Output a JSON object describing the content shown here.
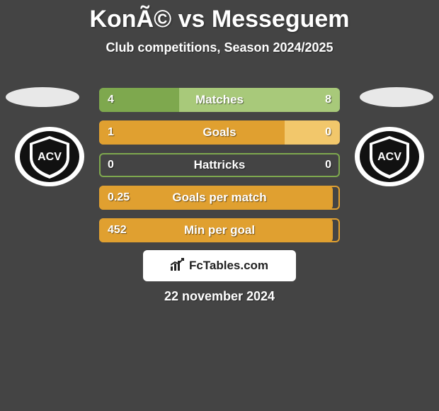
{
  "header": {
    "title": "KonÃ© vs Messeguem",
    "subtitle": "Club competitions, Season 2024/2025"
  },
  "colors": {
    "background": "#444444",
    "bar_border_matches": "#7ea84e",
    "bar_fill_matches_left": "#7ea84e",
    "bar_fill_matches_right": "#a8c97a",
    "bar_border_goals": "#e0a030",
    "bar_fill_goals_left": "#e0a030",
    "bar_fill_goals_right": "#f2c76b",
    "text": "#ffffff",
    "badge_bg": "#e8e8e8",
    "attribution_bg": "#ffffff",
    "attribution_text": "#222222"
  },
  "bars": [
    {
      "label": "Matches",
      "left": "4",
      "right": "8",
      "left_pct": 33.3,
      "right_pct": 66.7,
      "border": "#7ea84e",
      "left_fill": "#7ea84e",
      "right_fill": "#a8c97a"
    },
    {
      "label": "Goals",
      "left": "1",
      "right": "0",
      "left_pct": 77,
      "right_pct": 23,
      "border": "#e0a030",
      "left_fill": "#e0a030",
      "right_fill": "#f2c76b"
    },
    {
      "label": "Hattricks",
      "left": "0",
      "right": "0",
      "left_pct": 0,
      "right_pct": 0,
      "border": "#7ea84e",
      "left_fill": "#7ea84e",
      "right_fill": "#a8c97a"
    },
    {
      "label": "Goals per match",
      "left": "0.25",
      "right": "",
      "left_pct": 97,
      "right_pct": 0,
      "border": "#e0a030",
      "left_fill": "#e0a030",
      "right_fill": "#f2c76b"
    },
    {
      "label": "Min per goal",
      "left": "452",
      "right": "",
      "left_pct": 97,
      "right_pct": 0,
      "border": "#e0a030",
      "left_fill": "#e0a030",
      "right_fill": "#f2c76b"
    }
  ],
  "attribution": {
    "text": "FcTables.com"
  },
  "date": "22 november 2024",
  "club_badge": {
    "outer_ring": "#ffffff",
    "shield_fill": "#111111",
    "letters": "ACV"
  }
}
